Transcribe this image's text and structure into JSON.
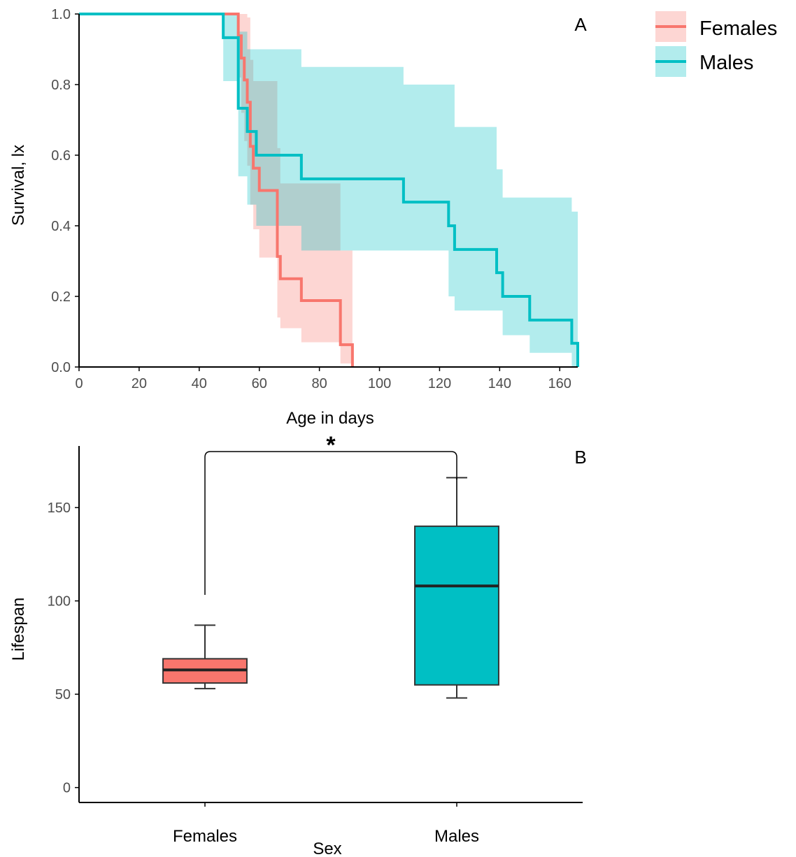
{
  "colors": {
    "females": "#F8766D",
    "males": "#00BFC4",
    "axis": "#000000",
    "ticktext": "#4d4d4d"
  },
  "chart_data": [
    {
      "type": "line",
      "subtype": "kaplan-meier-step-with-ci",
      "panel_label": "A",
      "xlabel": "Age in days",
      "ylabel": "Survival, lx",
      "xlim": [
        0,
        166
      ],
      "ylim": [
        0,
        1
      ],
      "xticks": [
        "0",
        "20",
        "40",
        "60",
        "80",
        "100",
        "120",
        "140",
        "160"
      ],
      "yticks": [
        "0.0",
        "0.2",
        "0.4",
        "0.6",
        "0.8",
        "1.0"
      ],
      "grid": false,
      "legend": {
        "position": "top-right",
        "entries": [
          {
            "label": "Females",
            "color": "#F8766D"
          },
          {
            "label": "Males",
            "color": "#00BFC4"
          }
        ]
      },
      "series": [
        {
          "name": "Females",
          "color": "#F8766D",
          "x": [
            0,
            53,
            54,
            55,
            56,
            57,
            58,
            60,
            66,
            67,
            74,
            80,
            87,
            91
          ],
          "y": [
            1.0,
            0.938,
            0.875,
            0.813,
            0.75,
            0.625,
            0.563,
            0.5,
            0.313,
            0.25,
            0.188,
            0.188,
            0.063,
            0.0
          ],
          "ci_x": [
            0,
            53,
            54,
            55,
            56,
            57,
            58,
            60,
            66,
            67,
            74,
            80,
            87,
            91
          ],
          "ci_lower": [
            1.0,
            0.82,
            0.72,
            0.64,
            0.57,
            0.46,
            0.39,
            0.31,
            0.14,
            0.11,
            0.07,
            0.07,
            0.01,
            0.0
          ],
          "ci_upper": [
            1.0,
            1.0,
            1.0,
            1.0,
            0.99,
            0.87,
            0.81,
            0.81,
            0.62,
            0.52,
            0.52,
            0.52,
            0.33,
            0.33
          ]
        },
        {
          "name": "Males",
          "color": "#00BFC4",
          "x": [
            0,
            48,
            53,
            56,
            59,
            74,
            108,
            123,
            125,
            139,
            141,
            150,
            164,
            166
          ],
          "y": [
            1.0,
            0.933,
            0.733,
            0.667,
            0.6,
            0.533,
            0.467,
            0.4,
            0.333,
            0.267,
            0.2,
            0.133,
            0.067,
            0.0
          ],
          "ci_x": [
            0,
            48,
            53,
            56,
            59,
            74,
            108,
            123,
            125,
            139,
            141,
            150,
            164,
            166
          ],
          "ci_lower": [
            1.0,
            0.81,
            0.54,
            0.46,
            0.4,
            0.33,
            0.33,
            0.2,
            0.16,
            0.16,
            0.09,
            0.04,
            0.0,
            0.0
          ],
          "ci_upper": [
            1.0,
            1.0,
            0.95,
            0.9,
            0.9,
            0.85,
            0.8,
            0.8,
            0.68,
            0.56,
            0.48,
            0.48,
            0.44,
            0.44
          ]
        }
      ]
    },
    {
      "type": "box",
      "panel_label": "B",
      "xlabel": "Sex",
      "ylabel": "Lifespan",
      "ylim": [
        -8,
        183
      ],
      "yticks": [
        "0",
        "50",
        "100",
        "150"
      ],
      "categories": [
        "Females",
        "Males"
      ],
      "grid": false,
      "significance": {
        "between": [
          "Females",
          "Males"
        ],
        "label": "*"
      },
      "boxes": [
        {
          "category": "Females",
          "color": "#F8766D",
          "min": 53,
          "q1": 56,
          "median": 63,
          "q3": 69,
          "max": 87
        },
        {
          "category": "Males",
          "color": "#00BFC4",
          "min": 48,
          "q1": 55,
          "median": 108,
          "q3": 140,
          "max": 166
        }
      ]
    }
  ]
}
